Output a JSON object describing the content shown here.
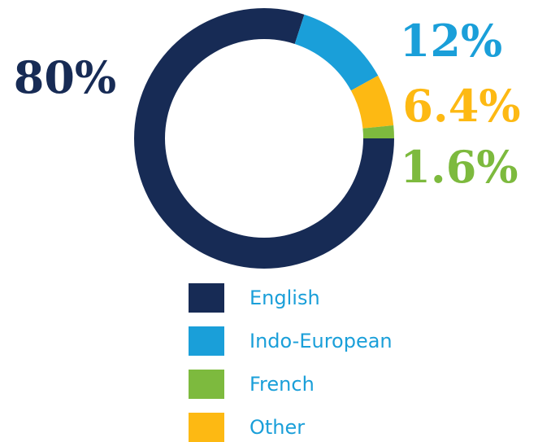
{
  "chart_data": {
    "type": "pie",
    "donut": true,
    "categories": [
      "English",
      "Indo-European",
      "French",
      "Other"
    ],
    "values": [
      80,
      12,
      1.6,
      6.4
    ],
    "value_labels": [
      "80%",
      "12%",
      "1.6%",
      "6.4%"
    ],
    "colors": [
      "#172b55",
      "#1a9fd9",
      "#7dba3e",
      "#fdb913"
    ]
  }
}
